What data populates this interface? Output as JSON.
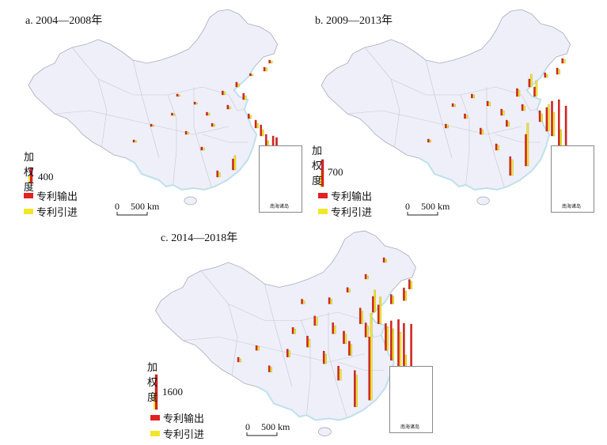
{
  "panels": [
    {
      "title": "a. 2004—2008年",
      "legend_value": "400"
    },
    {
      "title": "b. 2009—2013年",
      "legend_value": "700"
    },
    {
      "title": "c. 2014—2018年",
      "legend_value": "1600"
    }
  ],
  "legend": {
    "title": "加权度",
    "output_label": "专利输出",
    "input_label": "专利引进"
  },
  "scale": {
    "zero": "0",
    "label": "500 km"
  },
  "inset_label": "南海诸岛",
  "colors": {
    "land": "#eeeff8",
    "border": "#9aa0b8",
    "sea": "#bfe0ec",
    "output": "#e02222",
    "input": "#f2e62b",
    "bar_outline": "#8a1a10"
  }
}
